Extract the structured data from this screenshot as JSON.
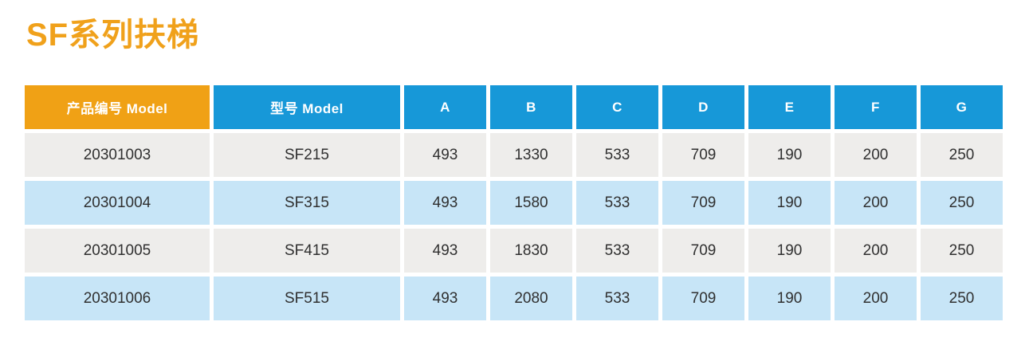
{
  "page": {
    "title": "SF系列扶梯"
  },
  "colors": {
    "title": "#F0A11B",
    "header_orange": "#F0A115",
    "header_blue": "#1798D8",
    "row_gray": "#EEEDEB",
    "row_blue": "#C7E5F7",
    "cell_text": "#303030",
    "header_text": "#FFFFFF"
  },
  "table": {
    "columns": [
      {
        "label": "产品编号 Model",
        "variant": "orange"
      },
      {
        "label": "型号 Model",
        "variant": "blue"
      },
      {
        "label": "A",
        "variant": "blue"
      },
      {
        "label": "B",
        "variant": "blue"
      },
      {
        "label": "C",
        "variant": "blue"
      },
      {
        "label": "D",
        "variant": "blue"
      },
      {
        "label": "E",
        "variant": "blue"
      },
      {
        "label": "F",
        "variant": "blue"
      },
      {
        "label": "G",
        "variant": "blue"
      }
    ],
    "rows": [
      [
        "20301003",
        "SF215",
        "493",
        "1330",
        "533",
        "709",
        "190",
        "200",
        "250"
      ],
      [
        "20301004",
        "SF315",
        "493",
        "1580",
        "533",
        "709",
        "190",
        "200",
        "250"
      ],
      [
        "20301005",
        "SF415",
        "493",
        "1830",
        "533",
        "709",
        "190",
        "200",
        "250"
      ],
      [
        "20301006",
        "SF515",
        "493",
        "2080",
        "533",
        "709",
        "190",
        "200",
        "250"
      ]
    ]
  }
}
